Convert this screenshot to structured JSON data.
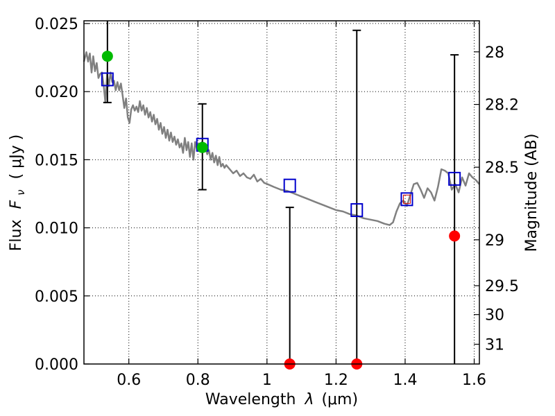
{
  "chart_data": {
    "type": "scatter",
    "xlabel_prefix": "Wavelength",
    "xlabel_symbol": "λ",
    "xlabel_unit": "(μm)",
    "ylabel_prefix": "Flux",
    "ylabel_symbol": "F",
    "ylabel_sub": "ν",
    "ylabel_unit": "( μJy )",
    "y2label": "Magnitude (AB)",
    "xlim": [
      0.47,
      1.615
    ],
    "ylim": [
      0.0,
      0.0252
    ],
    "grid": true,
    "x_ticks": [
      {
        "value": 0.6,
        "label": "0.6"
      },
      {
        "value": 0.8,
        "label": "0.8"
      },
      {
        "value": 1.0,
        "label": "1"
      },
      {
        "value": 1.2,
        "label": "1.2"
      },
      {
        "value": 1.4,
        "label": "1.4"
      },
      {
        "value": 1.6,
        "label": "1.6"
      }
    ],
    "y_ticks": [
      {
        "value": 0.0,
        "label": "0.000"
      },
      {
        "value": 0.005,
        "label": "0.005"
      },
      {
        "value": 0.01,
        "label": "0.010"
      },
      {
        "value": 0.015,
        "label": "0.015"
      },
      {
        "value": 0.02,
        "label": "0.020"
      },
      {
        "value": 0.025,
        "label": "0.025"
      }
    ],
    "y2_ticks": [
      {
        "flux": 0.02292,
        "label": "28"
      },
      {
        "flux": 0.01906,
        "label": "28.2"
      },
      {
        "flux": 0.01445,
        "label": "28.5"
      },
      {
        "flux": 0.00912,
        "label": "29"
      },
      {
        "flux": 0.00575,
        "label": "29.5"
      },
      {
        "flux": 0.00363,
        "label": "30"
      },
      {
        "flux": 0.00145,
        "label": "31"
      }
    ],
    "model_spectrum": {
      "color": "#808080",
      "x": [
        0.47,
        0.477,
        0.482,
        0.487,
        0.492,
        0.497,
        0.502,
        0.507,
        0.512,
        0.517,
        0.522,
        0.527,
        0.532,
        0.537,
        0.542,
        0.547,
        0.552,
        0.557,
        0.562,
        0.567,
        0.572,
        0.577,
        0.582,
        0.587,
        0.592,
        0.597,
        0.602,
        0.607,
        0.612,
        0.617,
        0.622,
        0.627,
        0.632,
        0.637,
        0.642,
        0.647,
        0.652,
        0.657,
        0.662,
        0.667,
        0.672,
        0.677,
        0.682,
        0.687,
        0.692,
        0.697,
        0.702,
        0.707,
        0.712,
        0.717,
        0.722,
        0.727,
        0.732,
        0.737,
        0.742,
        0.747,
        0.752,
        0.757,
        0.762,
        0.767,
        0.772,
        0.777,
        0.782,
        0.787,
        0.792,
        0.797,
        0.802,
        0.807,
        0.812,
        0.817,
        0.822,
        0.827,
        0.832,
        0.837,
        0.842,
        0.847,
        0.852,
        0.857,
        0.862,
        0.867,
        0.872,
        0.877,
        0.882,
        0.892,
        0.902,
        0.912,
        0.922,
        0.932,
        0.942,
        0.952,
        0.962,
        0.972,
        0.982,
        0.992,
        1.002,
        1.02,
        1.04,
        1.06,
        1.08,
        1.1,
        1.12,
        1.14,
        1.16,
        1.18,
        1.2,
        1.22,
        1.24,
        1.26,
        1.28,
        1.3,
        1.32,
        1.34,
        1.355,
        1.365,
        1.375,
        1.385,
        1.395,
        1.405,
        1.415,
        1.425,
        1.435,
        1.445,
        1.455,
        1.465,
        1.475,
        1.485,
        1.495,
        1.505,
        1.515,
        1.525,
        1.535,
        1.545,
        1.555,
        1.565,
        1.575,
        1.585,
        1.595,
        1.605,
        1.615
      ],
      "y": [
        0.0222,
        0.0229,
        0.0222,
        0.0228,
        0.0214,
        0.0226,
        0.0215,
        0.0221,
        0.021,
        0.0213,
        0.0214,
        0.0205,
        0.0192,
        0.0213,
        0.0204,
        0.0214,
        0.0207,
        0.0208,
        0.0201,
        0.0207,
        0.0201,
        0.0206,
        0.0197,
        0.0188,
        0.0195,
        0.0181,
        0.0177,
        0.0187,
        0.019,
        0.0186,
        0.0189,
        0.0185,
        0.0193,
        0.0186,
        0.019,
        0.0183,
        0.0188,
        0.0181,
        0.0185,
        0.0178,
        0.0183,
        0.0176,
        0.018,
        0.0172,
        0.0177,
        0.0169,
        0.0174,
        0.0166,
        0.0172,
        0.0164,
        0.017,
        0.0163,
        0.0167,
        0.0161,
        0.0165,
        0.0159,
        0.0162,
        0.0155,
        0.0166,
        0.0157,
        0.0163,
        0.0152,
        0.0162,
        0.015,
        0.0163,
        0.0158,
        0.0162,
        0.0159,
        0.0163,
        0.0157,
        0.0159,
        0.0154,
        0.0157,
        0.015,
        0.0155,
        0.0148,
        0.0153,
        0.0146,
        0.0152,
        0.0145,
        0.0147,
        0.0144,
        0.0146,
        0.0143,
        0.014,
        0.0142,
        0.0138,
        0.014,
        0.0137,
        0.0136,
        0.0139,
        0.0134,
        0.0136,
        0.0133,
        0.0132,
        0.013,
        0.0128,
        0.0127,
        0.0125,
        0.0123,
        0.0121,
        0.0119,
        0.0117,
        0.0115,
        0.0113,
        0.0112,
        0.011,
        0.0109,
        0.0107,
        0.0106,
        0.0105,
        0.0103,
        0.0102,
        0.0104,
        0.0112,
        0.0118,
        0.012,
        0.0116,
        0.0124,
        0.0132,
        0.0133,
        0.0128,
        0.0122,
        0.0129,
        0.0126,
        0.012,
        0.013,
        0.0143,
        0.0142,
        0.014,
        0.0128,
        0.0132,
        0.0126,
        0.0137,
        0.0131,
        0.014,
        0.0137,
        0.0135,
        0.0132
      ]
    },
    "squares": {
      "color": "#0000cc",
      "points": [
        {
          "x": 0.538,
          "y": 0.0209
        },
        {
          "x": 0.813,
          "y": 0.0161
        },
        {
          "x": 1.066,
          "y": 0.0131
        },
        {
          "x": 1.26,
          "y": 0.0113
        },
        {
          "x": 1.405,
          "y": 0.0121
        },
        {
          "x": 1.543,
          "y": 0.0136
        }
      ]
    },
    "small_square": {
      "color": "#d00000",
      "x": 1.405,
      "y": 0.0121
    },
    "green_points": {
      "color": "#00bb00",
      "points": [
        {
          "x": 0.538,
          "y": 0.0226
        },
        {
          "x": 0.813,
          "y": 0.0159
        }
      ]
    },
    "red_points": {
      "color": "#ff0000",
      "points": [
        {
          "x": 1.066,
          "y": 0.0
        },
        {
          "x": 1.26,
          "y": 0.0
        },
        {
          "x": 1.543,
          "y": 0.0094
        }
      ]
    },
    "error_bars": [
      {
        "x": 0.538,
        "low": 0.0192,
        "high": 0.0256
      },
      {
        "x": 0.813,
        "low": 0.0128,
        "high": 0.0191
      },
      {
        "x": 1.066,
        "low": 0.0,
        "high": 0.0115
      },
      {
        "x": 1.26,
        "low": 0.0,
        "high": 0.0245
      },
      {
        "x": 1.543,
        "low": 0.0,
        "high": 0.0227
      }
    ]
  }
}
